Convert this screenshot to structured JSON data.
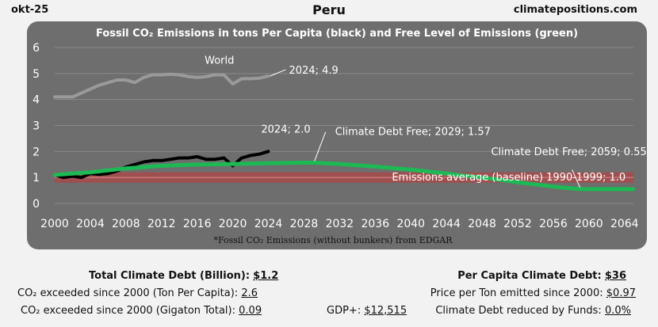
{
  "header": {
    "date": "okt-25",
    "country": "Peru",
    "site": "climatepositions.com"
  },
  "chart_data": {
    "type": "line",
    "title": "Fossil CO₂ Emissions in tons Per Capita (black) and Free Level of Emissions (green)",
    "footnote": "*Fossil CO₂ Emissions (without bunkers) from EDGAR",
    "xlim": [
      2000,
      2065
    ],
    "ylim": [
      0,
      6
    ],
    "x_ticks": [
      2000,
      2004,
      2008,
      2012,
      2016,
      2020,
      2024,
      2028,
      2032,
      2036,
      2040,
      2044,
      2048,
      2052,
      2056,
      2060,
      2064
    ],
    "y_ticks": [
      0,
      1,
      2,
      3,
      4,
      5,
      6
    ],
    "grid": true,
    "baseline_band": {
      "label": "Emissions average (baseline) 1990-1999; 1.0",
      "value": 1.0
    },
    "series": [
      {
        "name": "World",
        "color": "#9a9a9a",
        "x": [
          2000,
          2001,
          2002,
          2003,
          2004,
          2005,
          2006,
          2007,
          2008,
          2009,
          2010,
          2011,
          2012,
          2013,
          2014,
          2015,
          2016,
          2017,
          2018,
          2019,
          2020,
          2021,
          2022,
          2023,
          2024
        ],
        "values": [
          4.1,
          4.1,
          4.1,
          4.25,
          4.4,
          4.55,
          4.65,
          4.75,
          4.75,
          4.65,
          4.85,
          4.95,
          4.95,
          4.97,
          4.95,
          4.88,
          4.85,
          4.88,
          4.95,
          4.95,
          4.6,
          4.8,
          4.8,
          4.82,
          4.9
        ]
      },
      {
        "name": "Peru",
        "color": "#000000",
        "x": [
          2000,
          2001,
          2002,
          2003,
          2004,
          2005,
          2006,
          2007,
          2008,
          2009,
          2010,
          2011,
          2012,
          2013,
          2014,
          2015,
          2016,
          2017,
          2018,
          2019,
          2020,
          2021,
          2022,
          2023,
          2024
        ],
        "values": [
          1.1,
          1.0,
          1.05,
          1.0,
          1.15,
          1.12,
          1.15,
          1.25,
          1.4,
          1.5,
          1.6,
          1.65,
          1.65,
          1.7,
          1.75,
          1.75,
          1.8,
          1.7,
          1.7,
          1.75,
          1.45,
          1.75,
          1.85,
          1.9,
          2.0
        ]
      },
      {
        "name": "Free Level of Emissions",
        "color": "#1db954",
        "x": [
          2000,
          2004,
          2008,
          2012,
          2016,
          2020,
          2024,
          2028,
          2029,
          2032,
          2036,
          2040,
          2044,
          2048,
          2052,
          2056,
          2059,
          2062,
          2065
        ],
        "values": [
          1.1,
          1.2,
          1.35,
          1.45,
          1.5,
          1.52,
          1.55,
          1.57,
          1.57,
          1.52,
          1.42,
          1.3,
          1.15,
          1.0,
          0.82,
          0.65,
          0.55,
          0.55,
          0.55
        ]
      }
    ],
    "annotations": [
      {
        "text": "World",
        "x": 2018.5,
        "y": 5.5
      },
      {
        "text": "2024; 4.9",
        "x": 2024,
        "y": 4.9
      },
      {
        "text": "2024; 2.0",
        "x": 2024,
        "y": 2.0
      },
      {
        "text": "Climate Debt Free; 2029; 1.57",
        "x": 2029,
        "y": 1.57
      },
      {
        "text": "Climate Debt Free; 2059; 0.55",
        "x": 2059,
        "y": 0.55
      }
    ]
  },
  "info": {
    "total_debt_label": "Total Climate Debt (Billion):",
    "total_debt_value": "$1.2",
    "exceeded_ton_label": "CO₂ exceeded since 2000 (Ton Per Capita):",
    "exceeded_ton_value": "2.6",
    "exceeded_gt_label": "CO₂ exceeded since 2000 (Gigaton Total):",
    "exceeded_gt_value": "0.09",
    "gdp_label": "GDP+:",
    "gdp_value": "$12,515",
    "per_capita_label": "Per Capita Climate Debt:",
    "per_capita_value": "$36",
    "price_label": "Price per Ton emitted since 2000:",
    "price_value": "$0.97",
    "funds_label": "Climate Debt reduced by Funds:",
    "funds_value": "0.0%"
  },
  "colors": {
    "plot_bg": "#6e6e6e",
    "band": "#b04545",
    "grid": "#8a8a8a"
  }
}
